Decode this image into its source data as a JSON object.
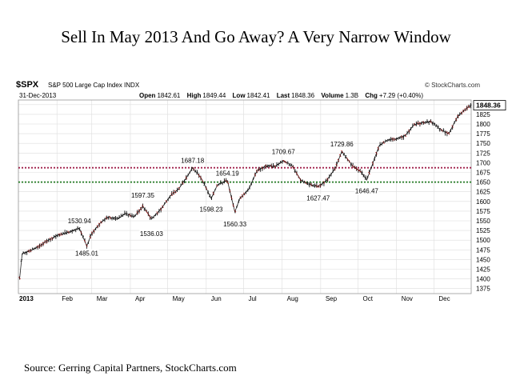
{
  "title": "Sell In May 2013 And Go Away?  A Very Narrow Window",
  "source": "Source: Gerring Capital Partners, StockCharts.com",
  "header": {
    "symbol": "$SPX",
    "index_name": "S&P 500 Large Cap Index",
    "index_exchange": "INDX",
    "watermark": "© StockCharts.com",
    "date": "31-Dec-2013",
    "open_label": "Open",
    "open": "1842.61",
    "high_label": "High",
    "high": "1849.44",
    "low_label": "Low",
    "low": "1842.41",
    "last_label": "Last",
    "last": "1848.36",
    "volume_label": "Volume",
    "volume": "1.3B",
    "chg_label": "Chg",
    "chg": "+7.29 (+0.40%)"
  },
  "chart_data": {
    "type": "line",
    "title": "Sell In May 2013 And Go Away?  A Very Narrow Window",
    "ylim": [
      1362,
      1862
    ],
    "grid": true,
    "y_axis_position": "right",
    "yticks": [
      1375,
      1400,
      1425,
      1450,
      1475,
      1500,
      1525,
      1550,
      1575,
      1600,
      1625,
      1650,
      1675,
      1700,
      1725,
      1750,
      1775,
      1800,
      1825,
      1850
    ],
    "x_labels": [
      "2013",
      "Feb",
      "Mar",
      "Apr",
      "May",
      "Jun",
      "Jul",
      "Aug",
      "Sep",
      "Oct",
      "Nov",
      "Dec"
    ],
    "last_value_label": "1848.36",
    "reference_lines": [
      {
        "value": 1687,
        "color": "#a0204a",
        "style": "dotted"
      },
      {
        "value": 1650,
        "color": "#207a20",
        "style": "dotted"
      }
    ],
    "series": [
      {
        "x": [
          "2013-01-02",
          "2013-01-04",
          "2013-01-10",
          "2013-01-18",
          "2013-01-25",
          "2013-02-01",
          "2013-02-08",
          "2013-02-19",
          "2013-02-25",
          "2013-03-01",
          "2013-03-08",
          "2013-03-14",
          "2013-03-22",
          "2013-03-28",
          "2013-04-04",
          "2013-04-11",
          "2013-04-18",
          "2013-04-26",
          "2013-05-03",
          "2013-05-10",
          "2013-05-17",
          "2013-05-21",
          "2013-05-28",
          "2013-06-05",
          "2013-06-10",
          "2013-06-18",
          "2013-06-24",
          "2013-06-28",
          "2013-07-05",
          "2013-07-12",
          "2013-07-19",
          "2013-07-26",
          "2013-08-02",
          "2013-08-09",
          "2013-08-16",
          "2013-08-22",
          "2013-08-30",
          "2013-09-06",
          "2013-09-13",
          "2013-09-18",
          "2013-09-27",
          "2013-10-03",
          "2013-10-08",
          "2013-10-18",
          "2013-10-25",
          "2013-11-01",
          "2013-11-08",
          "2013-11-15",
          "2013-11-22",
          "2013-11-29",
          "2013-12-06",
          "2013-12-13",
          "2013-12-20",
          "2013-12-27",
          "2013-12-31"
        ],
        "values": [
          1402,
          1465,
          1472,
          1485,
          1500,
          1512,
          1518,
          1530.94,
          1485.01,
          1518,
          1545,
          1560,
          1555,
          1569,
          1560,
          1588,
          1555,
          1582,
          1614,
          1633,
          1666,
          1687.18,
          1660,
          1608,
          1643,
          1654.19,
          1573,
          1608,
          1631,
          1680,
          1692,
          1690,
          1705,
          1692,
          1655,
          1645,
          1638,
          1655,
          1687,
          1729.86,
          1690,
          1678,
          1655,
          1744,
          1759,
          1762,
          1770,
          1798,
          1804,
          1806,
          1786,
          1775,
          1819,
          1840,
          1848.36
        ]
      }
    ],
    "annotations": [
      {
        "x": "2013-02-19",
        "y": 1530.94,
        "text": "1530.94"
      },
      {
        "x": "2013-02-25",
        "y": 1485.01,
        "text": "1485.01"
      },
      {
        "x": "2013-04-11",
        "y": 1597.35,
        "text": "1597.35"
      },
      {
        "x": "2013-04-18",
        "y": 1536.03,
        "text": "1536.03"
      },
      {
        "x": "2013-05-21",
        "y": 1687.18,
        "text": "1687.18"
      },
      {
        "x": "2013-06-05",
        "y": 1598.23,
        "text": "1598.23"
      },
      {
        "x": "2013-06-18",
        "y": 1654.19,
        "text": "1654.19"
      },
      {
        "x": "2013-06-24",
        "y": 1560.33,
        "text": "1560.33"
      },
      {
        "x": "2013-08-02",
        "y": 1709.67,
        "text": "1709.67"
      },
      {
        "x": "2013-08-30",
        "y": 1627.47,
        "text": "1627.47"
      },
      {
        "x": "2013-09-18",
        "y": 1729.86,
        "text": "1729.86"
      },
      {
        "x": "2013-10-08",
        "y": 1646.47,
        "text": "1646.47"
      }
    ]
  }
}
